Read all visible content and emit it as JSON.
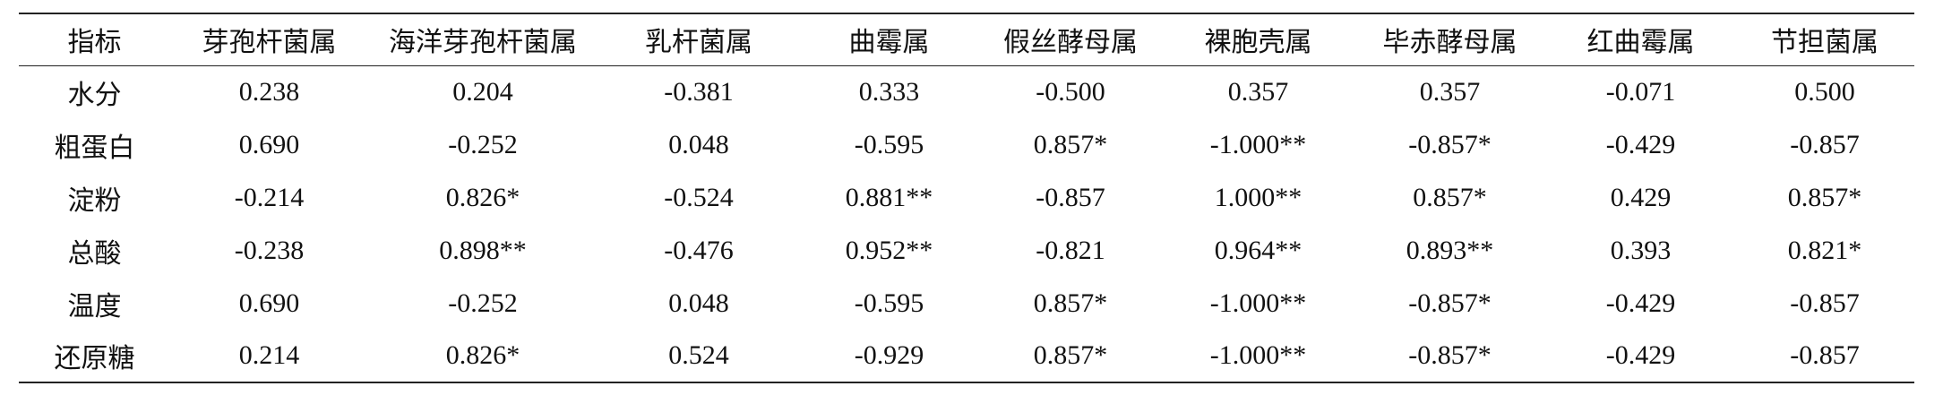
{
  "table": {
    "header": [
      "指标",
      "芽孢杆菌属",
      "海洋芽孢杆菌属",
      "乳杆菌属",
      "曲霉属",
      "假丝酵母属",
      "裸胞壳属",
      "毕赤酵母属",
      "红曲霉属",
      "节担菌属"
    ],
    "rows": [
      [
        "水分",
        "0.238",
        "0.204",
        "-0.381",
        "0.333",
        "-0.500",
        "0.357",
        "0.357",
        "-0.071",
        "0.500"
      ],
      [
        "粗蛋白",
        "0.690",
        "-0.252",
        "0.048",
        "-0.595",
        "0.857*",
        "-1.000**",
        "-0.857*",
        "-0.429",
        "-0.857"
      ],
      [
        "淀粉",
        "-0.214",
        "0.826*",
        "-0.524",
        "0.881**",
        "-0.857",
        "1.000**",
        "0.857*",
        "0.429",
        "0.857*"
      ],
      [
        "总酸",
        "-0.238",
        "0.898**",
        "-0.476",
        "0.952**",
        "-0.821",
        "0.964**",
        "0.893**",
        "0.393",
        "0.821*"
      ],
      [
        "温度",
        "0.690",
        "-0.252",
        "0.048",
        "-0.595",
        "0.857*",
        "-1.000**",
        "-0.857*",
        "-0.429",
        "-0.857"
      ],
      [
        "还原糖",
        "0.214",
        "0.826*",
        "0.524",
        "-0.929",
        "0.857*",
        "-1.000**",
        "-0.857*",
        "-0.429",
        "-0.857"
      ]
    ]
  }
}
